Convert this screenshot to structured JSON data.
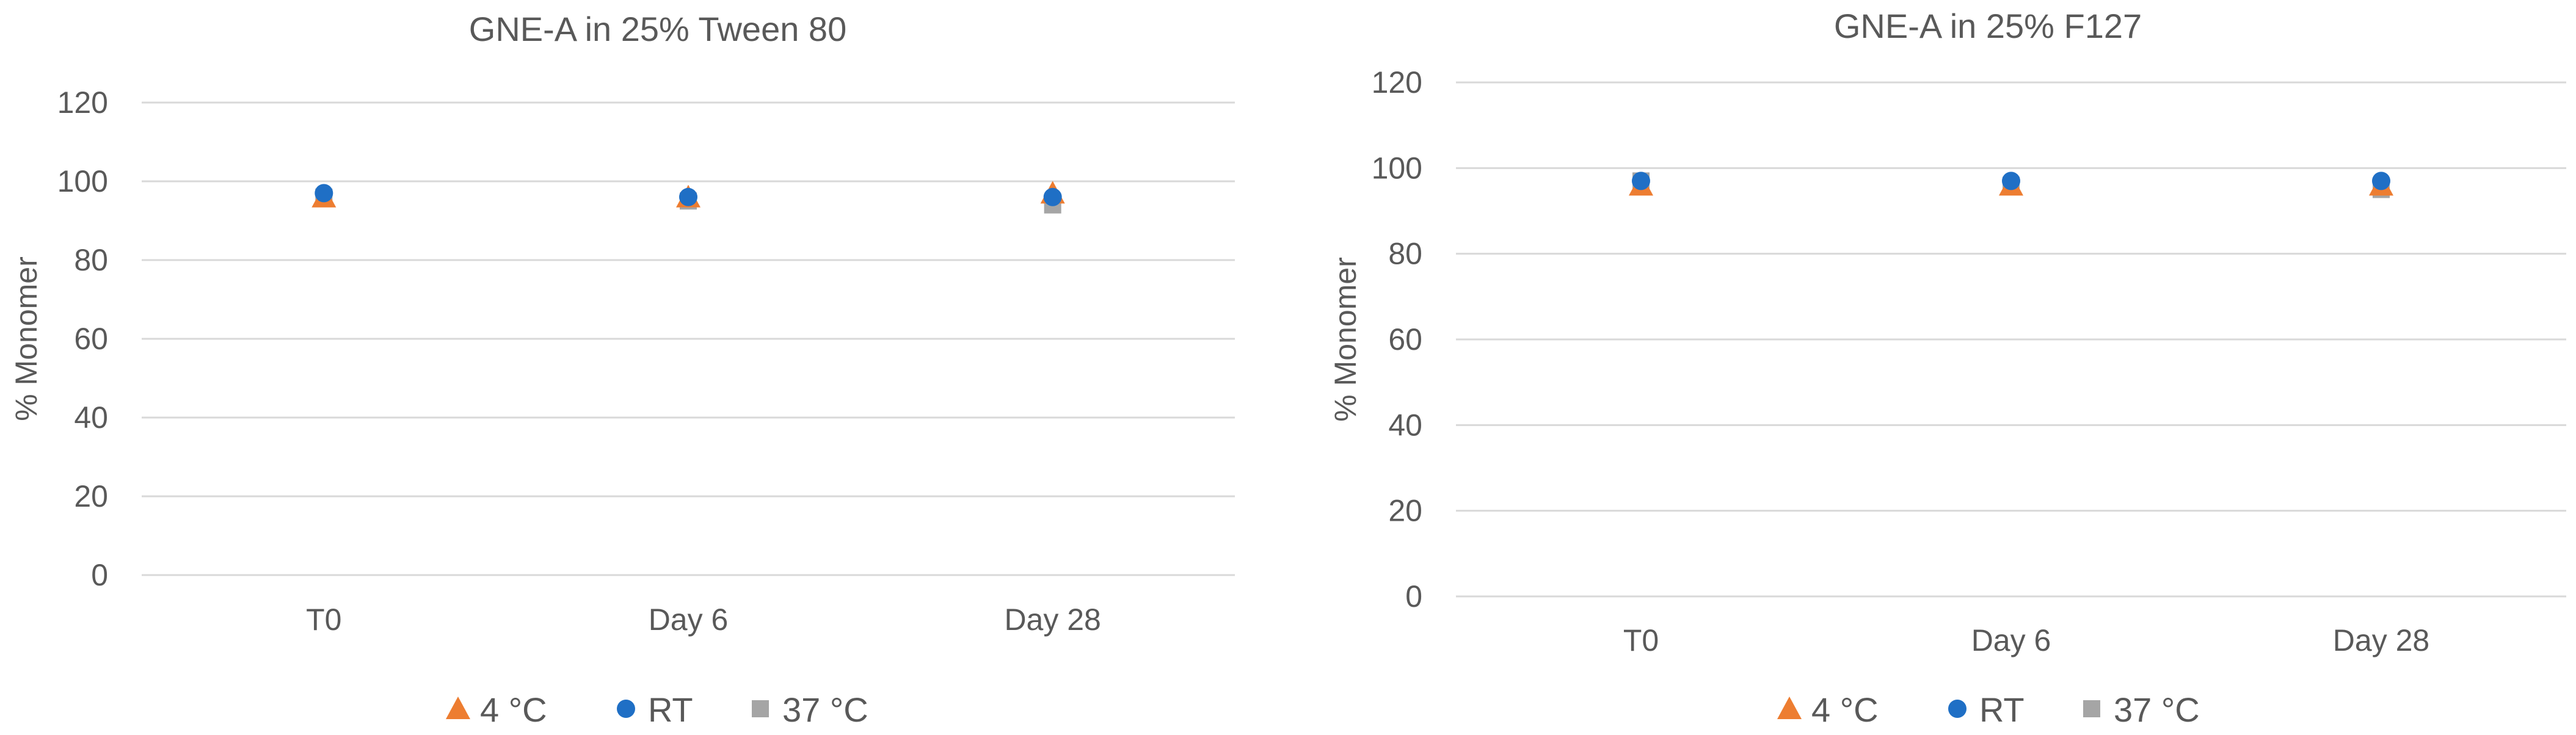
{
  "colors": {
    "s4c": "#ED7D31",
    "rt": "#1F6FC5",
    "s37c": "#A5A5A5"
  },
  "chart_data": [
    {
      "type": "scatter",
      "title": "GNE-A in 25% Tween 80",
      "xlabel": "",
      "ylabel": "% Monomer",
      "categories": [
        "T0",
        "Day 6",
        "Day 28"
      ],
      "yticks": [
        "0",
        "20",
        "40",
        "60",
        "80",
        "100",
        "120"
      ],
      "ylim": [
        0,
        120
      ],
      "grid": true,
      "legend": "bottom",
      "series": [
        {
          "name": "4 °C",
          "marker": "triangle",
          "values": [
            96,
            96,
            97
          ]
        },
        {
          "name": "RT",
          "marker": "circle",
          "values": [
            97,
            96,
            96
          ]
        },
        {
          "name": "37 °C",
          "marker": "square",
          "values": [
            96,
            95,
            94
          ]
        }
      ]
    },
    {
      "type": "scatter",
      "title": "GNE-A in 25% F127",
      "xlabel": "",
      "ylabel": "% Monomer",
      "categories": [
        "T0",
        "Day 6",
        "Day 28"
      ],
      "yticks": [
        "0",
        "20",
        "40",
        "60",
        "80",
        "100",
        "120"
      ],
      "ylim": [
        0,
        120
      ],
      "grid": true,
      "legend": "bottom",
      "series": [
        {
          "name": "4 °C",
          "marker": "triangle",
          "values": [
            96,
            96,
            96
          ]
        },
        {
          "name": "RT",
          "marker": "circle",
          "values": [
            97,
            97,
            97
          ]
        },
        {
          "name": "37 °C",
          "marker": "square",
          "values": [
            97,
            96,
            95
          ]
        }
      ]
    }
  ]
}
